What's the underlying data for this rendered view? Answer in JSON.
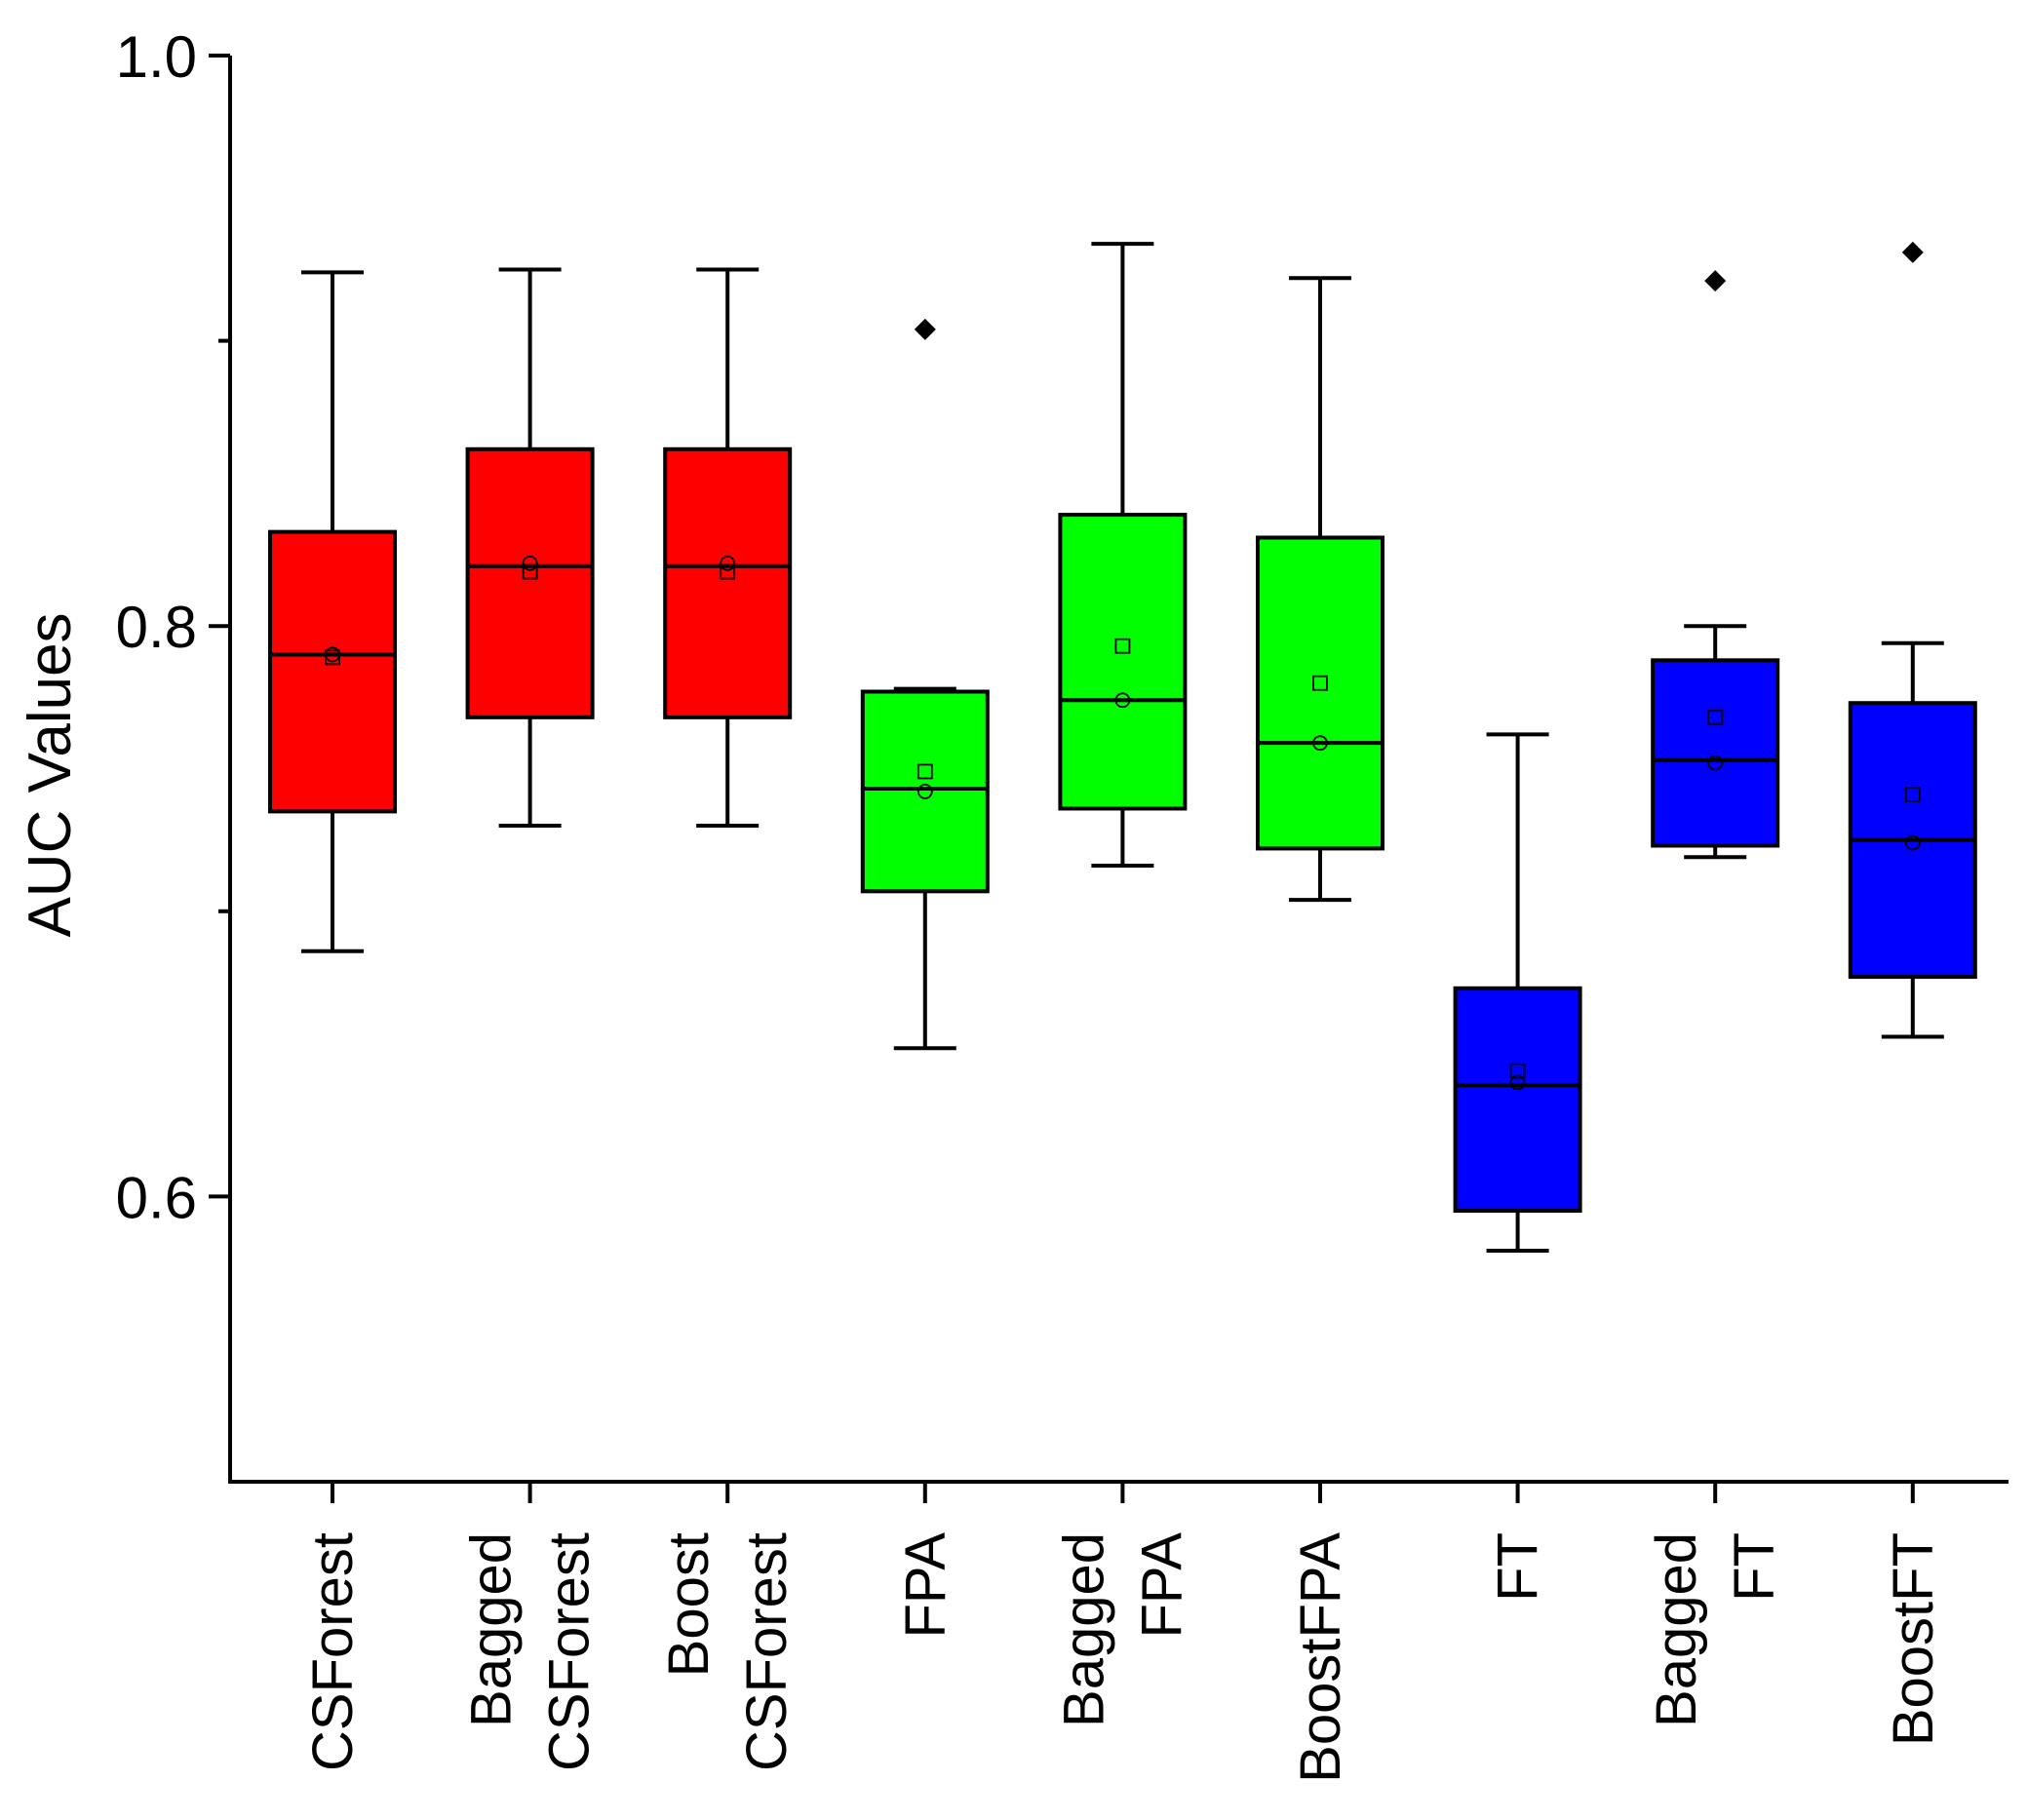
{
  "chart_data": {
    "type": "box",
    "ylabel": "AUC Values",
    "xlabel": "",
    "ylim": [
      0.5,
      1.0
    ],
    "yticks": [
      {
        "value": 0.6,
        "label": "0.6"
      },
      {
        "value": 0.8,
        "label": "0.8"
      },
      {
        "value": 1.0,
        "label": "1.0"
      }
    ],
    "minor_yticks": [
      0.7,
      0.9
    ],
    "grid": false,
    "colors": {
      "red": "#ff0000",
      "green": "#00ff00",
      "blue": "#0000ff",
      "stroke": "#000000"
    },
    "categories": [
      {
        "lines": [
          "CSForest"
        ],
        "color": "red",
        "min": 0.686,
        "q1": 0.735,
        "median": 0.79,
        "q3": 0.833,
        "max": 0.924,
        "mean": 0.789,
        "circle": 0.79,
        "outliers": []
      },
      {
        "lines": [
          "Bagged",
          "CSForest"
        ],
        "color": "red",
        "min": 0.73,
        "q1": 0.768,
        "median": 0.821,
        "q3": 0.862,
        "max": 0.925,
        "mean": 0.819,
        "circle": 0.822,
        "outliers": []
      },
      {
        "lines": [
          "Boost",
          "CSForest"
        ],
        "color": "red",
        "min": 0.73,
        "q1": 0.768,
        "median": 0.821,
        "q3": 0.862,
        "max": 0.925,
        "mean": 0.819,
        "circle": 0.822,
        "outliers": []
      },
      {
        "lines": [
          "FPA"
        ],
        "color": "green",
        "min": 0.652,
        "q1": 0.707,
        "median": 0.743,
        "q3": 0.777,
        "max": 0.778,
        "mean": 0.749,
        "circle": 0.742,
        "outliers": [
          0.904
        ]
      },
      {
        "lines": [
          "Bagged",
          "FPA"
        ],
        "color": "green",
        "min": 0.716,
        "q1": 0.736,
        "median": 0.774,
        "q3": 0.839,
        "max": 0.934,
        "mean": 0.793,
        "circle": 0.774,
        "outliers": []
      },
      {
        "lines": [
          "BoostFPA"
        ],
        "color": "green",
        "min": 0.704,
        "q1": 0.722,
        "median": 0.759,
        "q3": 0.831,
        "max": 0.922,
        "mean": 0.78,
        "circle": 0.759,
        "outliers": []
      },
      {
        "lines": [
          "FT"
        ],
        "color": "blue",
        "min": 0.581,
        "q1": 0.595,
        "median": 0.639,
        "q3": 0.673,
        "max": 0.762,
        "mean": 0.644,
        "circle": 0.64,
        "outliers": []
      },
      {
        "lines": [
          "Bagged",
          "FT"
        ],
        "color": "blue",
        "min": 0.719,
        "q1": 0.723,
        "median": 0.753,
        "q3": 0.788,
        "max": 0.8,
        "mean": 0.768,
        "circle": 0.752,
        "outliers": [
          0.921
        ]
      },
      {
        "lines": [
          "BoostFT"
        ],
        "color": "blue",
        "min": 0.656,
        "q1": 0.677,
        "median": 0.725,
        "q3": 0.773,
        "max": 0.794,
        "mean": 0.741,
        "circle": 0.724,
        "outliers": [
          0.931
        ]
      }
    ]
  }
}
